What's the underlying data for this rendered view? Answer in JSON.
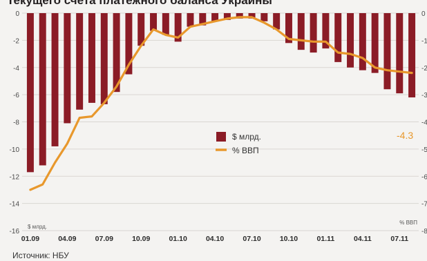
{
  "title": "Текущего счета платежного баланса Украины",
  "source": "Источник: НБУ",
  "colors": {
    "bar": "#8b1c26",
    "line": "#e8982c",
    "grid": "#d9d6d2"
  },
  "chart_data": {
    "type": "bar",
    "x": [
      "01.09",
      "02.09",
      "03.09",
      "04.09",
      "05.09",
      "06.09",
      "07.09",
      "08.09",
      "09.09",
      "10.09",
      "11.09",
      "12.09",
      "01.10",
      "02.10",
      "03.10",
      "04.10",
      "05.10",
      "06.10",
      "07.10",
      "08.10",
      "09.10",
      "10.10",
      "11.10",
      "12.10",
      "01.11",
      "02.11",
      "03.11",
      "04.11",
      "05.11",
      "06.11",
      "07.11",
      "08.11"
    ],
    "x_tick_labels": [
      "01.09",
      "04.09",
      "07.09",
      "10.09",
      "01.10",
      "04.10",
      "07.10",
      "10.10",
      "01.11",
      "04.11",
      "07.11"
    ],
    "series": [
      {
        "name": "$ млрд.",
        "axis": "left",
        "type": "bar",
        "values": [
          -11.7,
          -11.2,
          -9.8,
          -8.1,
          -7.1,
          -6.6,
          -6.7,
          -5.8,
          -4.5,
          -2.4,
          -1.3,
          -1.6,
          -2.1,
          -1.0,
          -0.9,
          -0.6,
          -0.5,
          -0.4,
          -0.4,
          -0.6,
          -1.2,
          -2.2,
          -2.7,
          -2.9,
          -2.6,
          -3.6,
          -4.0,
          -4.2,
          -4.4,
          -5.6,
          -5.9,
          -6.2
        ]
      },
      {
        "name": "% ВВП",
        "axis": "right",
        "type": "line",
        "values": [
          -6.5,
          -6.3,
          -5.5,
          -4.8,
          -3.85,
          -3.8,
          -3.3,
          -2.7,
          -1.9,
          -1.2,
          -0.6,
          -0.8,
          -0.9,
          -0.5,
          -0.4,
          -0.3,
          -0.2,
          -0.15,
          -0.15,
          -0.35,
          -0.6,
          -0.95,
          -1.0,
          -1.05,
          -1.05,
          -1.45,
          -1.5,
          -1.65,
          -2.0,
          -2.1,
          -2.15,
          -2.2
        ]
      }
    ],
    "y_left": {
      "ticks": [
        0,
        -2,
        -4,
        -6,
        -8,
        -10,
        -12,
        -14,
        -16
      ],
      "ylim": [
        -16,
        0
      ],
      "unit_label": "$ млрд."
    },
    "y_right": {
      "ticks": [
        "0",
        "-1",
        "-2",
        "-3",
        "-4",
        "-5",
        "-6",
        "-7",
        "-8"
      ],
      "unit_label": "% ВВП"
    },
    "end_annotation": "-4.3",
    "legend": {
      "position": "center",
      "entries": [
        "$ млрд.",
        "% ВВП"
      ]
    },
    "grid": true
  }
}
